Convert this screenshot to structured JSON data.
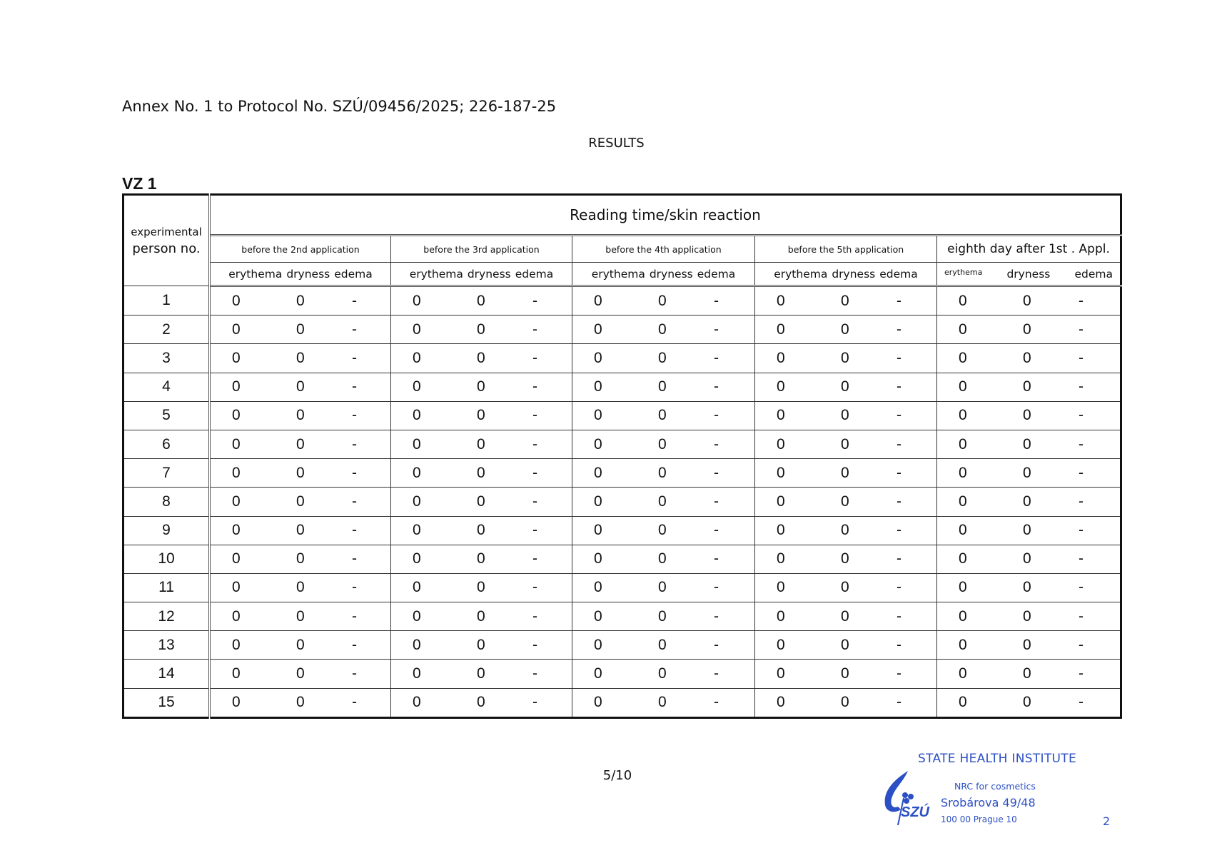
{
  "header": {
    "annex": "Annex No. 1 to Protocol No. SZÚ/09456/2025; 226-187-25",
    "title": "RESULTS",
    "sample": "VZ 1"
  },
  "table": {
    "person_header_1": "experimental",
    "person_header_2": "person no.",
    "group_header": "Reading time/skin reaction",
    "periods": [
      "before the 2nd application",
      "before the 3rd application",
      "before the 4th application",
      "before the 5th application",
      "eighth day after 1st . Appl."
    ],
    "reaction_columns": [
      "erythema",
      "dryness",
      "edema"
    ],
    "rows": [
      {
        "person": "1",
        "values": [
          [
            "0",
            "0",
            "-"
          ],
          [
            "0",
            "0",
            "-"
          ],
          [
            "0",
            "0",
            "-"
          ],
          [
            "0",
            "0",
            "-"
          ],
          [
            "0",
            "0",
            "-"
          ]
        ]
      },
      {
        "person": "2",
        "values": [
          [
            "0",
            "0",
            "-"
          ],
          [
            "0",
            "0",
            "-"
          ],
          [
            "0",
            "0",
            "-"
          ],
          [
            "0",
            "0",
            "-"
          ],
          [
            "0",
            "0",
            "-"
          ]
        ]
      },
      {
        "person": "3",
        "values": [
          [
            "0",
            "0",
            "-"
          ],
          [
            "0",
            "0",
            "-"
          ],
          [
            "0",
            "0",
            "-"
          ],
          [
            "0",
            "0",
            "-"
          ],
          [
            "0",
            "0",
            "-"
          ]
        ]
      },
      {
        "person": "4",
        "values": [
          [
            "0",
            "0",
            "-"
          ],
          [
            "0",
            "0",
            "-"
          ],
          [
            "0",
            "0",
            "-"
          ],
          [
            "0",
            "0",
            "-"
          ],
          [
            "0",
            "0",
            "-"
          ]
        ]
      },
      {
        "person": "5",
        "values": [
          [
            "0",
            "0",
            "-"
          ],
          [
            "0",
            "0",
            "-"
          ],
          [
            "0",
            "0",
            "-"
          ],
          [
            "0",
            "0",
            "-"
          ],
          [
            "0",
            "0",
            "-"
          ]
        ]
      },
      {
        "person": "6",
        "values": [
          [
            "0",
            "0",
            "-"
          ],
          [
            "0",
            "0",
            "-"
          ],
          [
            "0",
            "0",
            "-"
          ],
          [
            "0",
            "0",
            "-"
          ],
          [
            "0",
            "0",
            "-"
          ]
        ]
      },
      {
        "person": "7",
        "values": [
          [
            "0",
            "0",
            "-"
          ],
          [
            "0",
            "0",
            "-"
          ],
          [
            "0",
            "0",
            "-"
          ],
          [
            "0",
            "0",
            "-"
          ],
          [
            "0",
            "0",
            "-"
          ]
        ]
      },
      {
        "person": "8",
        "values": [
          [
            "0",
            "0",
            "-"
          ],
          [
            "0",
            "0",
            "-"
          ],
          [
            "0",
            "0",
            "-"
          ],
          [
            "0",
            "0",
            "-"
          ],
          [
            "0",
            "0",
            "-"
          ]
        ]
      },
      {
        "person": "9",
        "values": [
          [
            "0",
            "0",
            "-"
          ],
          [
            "0",
            "0",
            "-"
          ],
          [
            "0",
            "0",
            "-"
          ],
          [
            "0",
            "0",
            "-"
          ],
          [
            "0",
            "0",
            "-"
          ]
        ]
      },
      {
        "person": "10",
        "values": [
          [
            "0",
            "0",
            "-"
          ],
          [
            "0",
            "0",
            "-"
          ],
          [
            "0",
            "0",
            "-"
          ],
          [
            "0",
            "0",
            "-"
          ],
          [
            "0",
            "0",
            "-"
          ]
        ]
      },
      {
        "person": "11",
        "values": [
          [
            "0",
            "0",
            "-"
          ],
          [
            "0",
            "0",
            "-"
          ],
          [
            "0",
            "0",
            "-"
          ],
          [
            "0",
            "0",
            "-"
          ],
          [
            "0",
            "0",
            "-"
          ]
        ]
      },
      {
        "person": "12",
        "values": [
          [
            "0",
            "0",
            "-"
          ],
          [
            "0",
            "0",
            "-"
          ],
          [
            "0",
            "0",
            "-"
          ],
          [
            "0",
            "0",
            "-"
          ],
          [
            "0",
            "0",
            "-"
          ]
        ]
      },
      {
        "person": "13",
        "values": [
          [
            "0",
            "0",
            "-"
          ],
          [
            "0",
            "0",
            "-"
          ],
          [
            "0",
            "0",
            "-"
          ],
          [
            "0",
            "0",
            "-"
          ],
          [
            "0",
            "0",
            "-"
          ]
        ]
      },
      {
        "person": "14",
        "values": [
          [
            "0",
            "0",
            "-"
          ],
          [
            "0",
            "0",
            "-"
          ],
          [
            "0",
            "0",
            "-"
          ],
          [
            "0",
            "0",
            "-"
          ],
          [
            "0",
            "0",
            "-"
          ]
        ]
      },
      {
        "person": "15",
        "values": [
          [
            "0",
            "0",
            "-"
          ],
          [
            "0",
            "0",
            "-"
          ],
          [
            "0",
            "0",
            "-"
          ],
          [
            "0",
            "0",
            "-"
          ],
          [
            "0",
            "0",
            "-"
          ]
        ]
      }
    ]
  },
  "footer": {
    "page": "5/10",
    "stamp": {
      "institute": "STATE HEALTH INSTITUTE",
      "department": "NRC for cosmetics",
      "street": "Srobárova 49/48",
      "city": "100 00 Prague 10",
      "number": "2",
      "logo_text": "SZÚ",
      "color": "#2b4fc4"
    }
  }
}
